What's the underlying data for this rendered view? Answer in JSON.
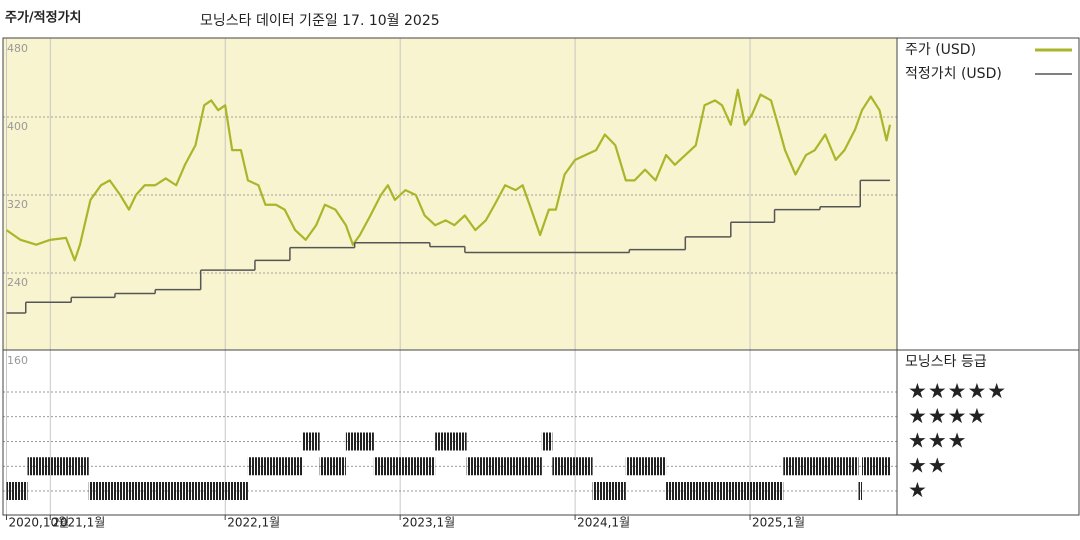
{
  "chart_data": {
    "type": "line",
    "title": "주가/적정가치",
    "subtitle": "모닝스타 데이터 기준일 17. 10월 2025",
    "xlim": [
      2020.73,
      2025.84
    ],
    "xticks": [
      {
        "value": 2020.75,
        "label": "2020,10월"
      },
      {
        "value": 2021,
        "label": "2021,1월"
      },
      {
        "value": 2022,
        "label": "2022,1월"
      },
      {
        "value": 2023,
        "label": "2023,1월"
      },
      {
        "value": 2024,
        "label": "2024,1월"
      },
      {
        "value": 2025,
        "label": "2025,1월"
      }
    ],
    "ylim": [
      160,
      480
    ],
    "yticks": [
      160,
      240,
      320,
      400,
      480
    ],
    "grid": true,
    "legend": "right",
    "series": [
      {
        "name": "주가 (USD)",
        "color": "#abb52a",
        "x": [
          2020.75,
          2020.83,
          2020.92,
          2021.0,
          2021.09,
          2021.14,
          2021.17,
          2021.23,
          2021.29,
          2021.34,
          2021.4,
          2021.45,
          2021.49,
          2021.54,
          2021.6,
          2021.66,
          2021.72,
          2021.77,
          2021.83,
          2021.88,
          2021.92,
          2021.96,
          2022.0,
          2022.04,
          2022.09,
          2022.13,
          2022.19,
          2022.23,
          2022.29,
          2022.34,
          2022.4,
          2022.46,
          2022.52,
          2022.57,
          2022.63,
          2022.69,
          2022.73,
          2022.77,
          2022.83,
          2022.89,
          2022.93,
          2022.97,
          2023.03,
          2023.09,
          2023.14,
          2023.2,
          2023.26,
          2023.31,
          2023.37,
          2023.43,
          2023.49,
          2023.54,
          2023.6,
          2023.66,
          2023.7,
          2023.74,
          2023.8,
          2023.85,
          2023.89,
          2023.94,
          2024.0,
          2024.06,
          2024.12,
          2024.17,
          2024.23,
          2024.29,
          2024.34,
          2024.4,
          2024.46,
          2024.52,
          2024.57,
          2024.63,
          2024.69,
          2024.74,
          2024.8,
          2024.84,
          2024.89,
          2024.93,
          2024.97,
          2025.01,
          2025.06,
          2025.12,
          2025.16,
          2025.2,
          2025.26,
          2025.32,
          2025.37,
          2025.43,
          2025.49,
          2025.54,
          2025.6,
          2025.64,
          2025.69,
          2025.74,
          2025.78,
          2025.8
        ],
        "values": [
          284,
          274,
          269,
          274,
          276,
          253,
          269,
          315,
          330,
          335,
          320,
          305,
          320,
          330,
          330,
          337,
          330,
          351,
          371,
          412,
          417,
          407,
          412,
          366,
          366,
          335,
          330,
          310,
          310,
          305,
          284,
          274,
          289,
          310,
          305,
          289,
          269,
          279,
          299,
          320,
          330,
          315,
          325,
          320,
          299,
          289,
          294,
          289,
          299,
          284,
          294,
          310,
          330,
          325,
          330,
          310,
          279,
          305,
          305,
          341,
          356,
          361,
          366,
          382,
          371,
          335,
          335,
          346,
          335,
          361,
          351,
          361,
          371,
          412,
          417,
          412,
          392,
          428,
          392,
          402,
          423,
          417,
          392,
          366,
          341,
          361,
          366,
          382,
          356,
          366,
          387,
          407,
          421,
          407,
          376,
          392
        ]
      },
      {
        "name": "적정가치 (USD)",
        "color": "#555555",
        "step": "post",
        "x": [
          2020.75,
          2020.86,
          2021.12,
          2021.37,
          2021.6,
          2021.86,
          2022.17,
          2022.37,
          2022.74,
          2023.17,
          2023.37,
          2024.31,
          2024.63,
          2024.89,
          2025.14,
          2025.4,
          2025.63,
          2025.8
        ],
        "values": [
          199,
          210,
          215,
          219,
          223,
          243,
          253,
          266,
          271,
          267,
          261,
          264,
          277,
          292,
          305,
          308,
          335,
          335
        ]
      }
    ],
    "rating": {
      "title": "모닝스타 등급",
      "labels": [
        "★★★★★",
        "★★★★",
        "★★★",
        "★★",
        "★"
      ],
      "levels": [
        5,
        4,
        3,
        2,
        1
      ],
      "bins": [
        2020.75,
        2020.87,
        2021.22,
        2022.13,
        2022.44,
        2022.54,
        2022.69,
        2022.85,
        2023.2,
        2023.38,
        2023.81,
        2023.87,
        2024.1,
        2024.29,
        2024.52,
        2025.19,
        2025.62,
        2025.64,
        2025.8
      ],
      "values": [
        1,
        2,
        1,
        2,
        3,
        2,
        3,
        2,
        3,
        2,
        3,
        2,
        1,
        2,
        1,
        2,
        1,
        2
      ]
    }
  }
}
